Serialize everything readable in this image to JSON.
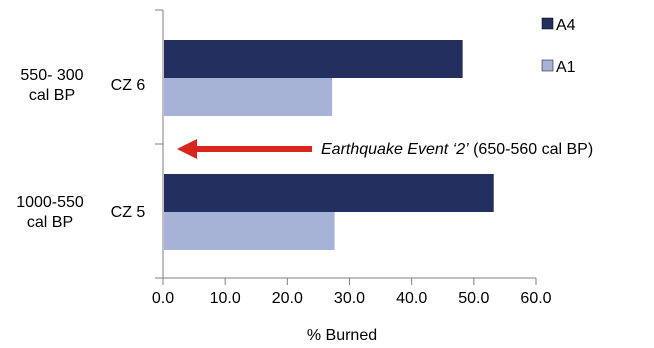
{
  "chart_data": {
    "type": "bar",
    "orientation": "horizontal",
    "categories": [
      {
        "period": [
          "550- 300",
          "cal BP"
        ],
        "zone": "CZ 6"
      },
      {
        "period": [
          "1000-550",
          "cal BP"
        ],
        "zone": "CZ 5"
      }
    ],
    "series": [
      {
        "name": "A4",
        "color": "#232f5e",
        "values": [
          48.2,
          53.2
        ]
      },
      {
        "name": "A1",
        "color": "#a6b3d6",
        "values": [
          27.2,
          27.6
        ]
      }
    ],
    "xlabel": "% Burned",
    "xlim": [
      0,
      60
    ],
    "xticks": [
      "0.0",
      "10.0",
      "20.0",
      "30.0",
      "40.0",
      "50.0",
      "60.0"
    ],
    "grid": false,
    "legend_position": "top-right",
    "annotation": {
      "italic_text": "Earthquake Event ‘2’",
      "text": " (650-560 cal BP)",
      "arrow_color": "#d9261c",
      "arrow_direction": "left"
    }
  }
}
